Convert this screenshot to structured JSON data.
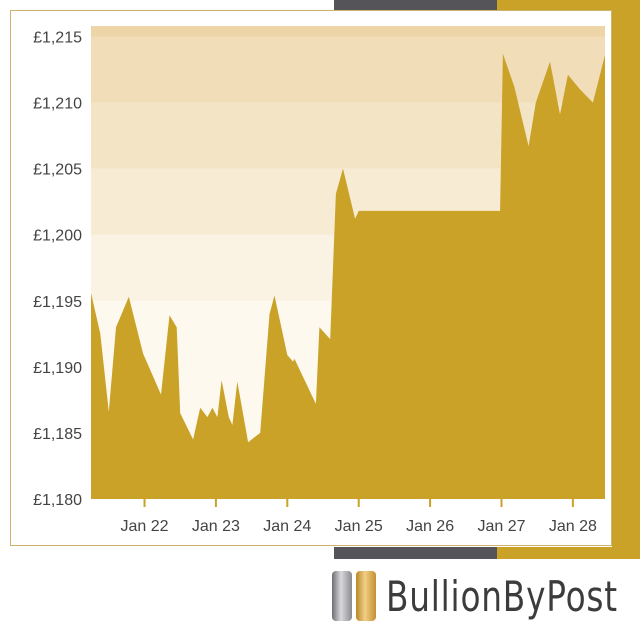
{
  "brand": {
    "name": "BullionByPost",
    "gold": "#c9a227",
    "dark": "#555459"
  },
  "chart_data": {
    "type": "area",
    "title": "",
    "xlabel": "",
    "ylabel": "",
    "currency": "£",
    "ylim": [
      1180,
      1216
    ],
    "yticks": [
      1180,
      1185,
      1190,
      1195,
      1200,
      1205,
      1210,
      1215
    ],
    "ytick_labels": [
      "£1,180",
      "£1,185",
      "£1,190",
      "£1,195",
      "£1,200",
      "£1,205",
      "£1,210",
      "£1,215"
    ],
    "xlim": [
      21.25,
      28.45
    ],
    "xticks": [
      22,
      23,
      24,
      25,
      26,
      27,
      28
    ],
    "xtick_labels": [
      "Jan 22",
      "Jan 23",
      "Jan 24",
      "Jan 25",
      "Jan 26",
      "Jan 27",
      "Jan 28"
    ],
    "grid": "horizontal bands",
    "fill_color": "#c9a227",
    "series": [
      {
        "points": [
          [
            21.25,
            1195.6
          ],
          [
            21.38,
            1192.5
          ],
          [
            21.5,
            1186.6
          ],
          [
            21.6,
            1193.0
          ],
          [
            21.78,
            1195.3
          ],
          [
            21.98,
            1191.0
          ],
          [
            22.23,
            1187.9
          ],
          [
            22.35,
            1193.9
          ],
          [
            22.45,
            1193.0
          ],
          [
            22.5,
            1186.5
          ],
          [
            22.68,
            1184.5
          ],
          [
            22.78,
            1186.9
          ],
          [
            22.88,
            1186.2
          ],
          [
            22.95,
            1186.9
          ],
          [
            23.02,
            1186.2
          ],
          [
            23.08,
            1189.0
          ],
          [
            23.18,
            1186.2
          ],
          [
            23.23,
            1185.6
          ],
          [
            23.3,
            1188.9
          ],
          [
            23.45,
            1184.3
          ],
          [
            23.62,
            1185.0
          ],
          [
            23.75,
            1194.0
          ],
          [
            23.82,
            1195.4
          ],
          [
            24.0,
            1190.9
          ],
          [
            24.08,
            1190.4
          ],
          [
            24.1,
            1190.6
          ],
          [
            24.4,
            1187.2
          ],
          [
            24.45,
            1193.0
          ],
          [
            24.6,
            1192.1
          ],
          [
            24.68,
            1203.1
          ],
          [
            24.78,
            1205.0
          ],
          [
            24.95,
            1201.2
          ],
          [
            25.0,
            1201.8
          ],
          [
            26.98,
            1201.8
          ],
          [
            27.02,
            1213.7
          ],
          [
            27.18,
            1211.2
          ],
          [
            27.38,
            1206.7
          ],
          [
            27.48,
            1210.0
          ],
          [
            27.68,
            1213.1
          ],
          [
            27.82,
            1209.1
          ],
          [
            27.93,
            1212.1
          ],
          [
            28.1,
            1211.0
          ],
          [
            28.28,
            1210.0
          ],
          [
            28.45,
            1213.6
          ]
        ]
      }
    ]
  }
}
